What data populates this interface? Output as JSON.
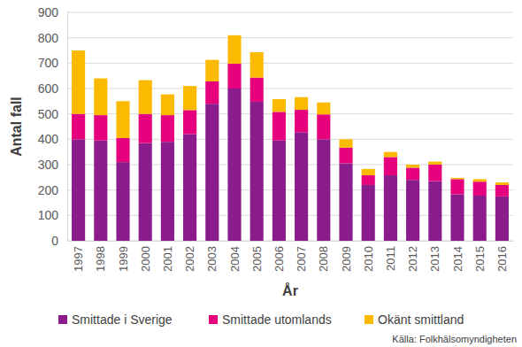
{
  "chart_data": {
    "type": "bar",
    "stacked": true,
    "grid": true,
    "legend": "bottom",
    "x_label": "År",
    "y_label": "Antal fall",
    "source": "Källa: Folkhälsomyndigheten",
    "categories": [
      "1997",
      "1998",
      "1999",
      "2000",
      "2001",
      "2002",
      "2003",
      "2004",
      "2005",
      "2006",
      "2007",
      "2008",
      "2009",
      "2010",
      "2011",
      "2012",
      "2013",
      "2014",
      "2015",
      "2016"
    ],
    "series": [
      {
        "name": "Smittade i Sverige",
        "color": "#8b1c8c",
        "values": [
          400,
          395,
          310,
          385,
          390,
          420,
          540,
          600,
          548,
          395,
          428,
          400,
          305,
          220,
          258,
          240,
          235,
          183,
          178,
          175
        ]
      },
      {
        "name": "Smittade utomlands",
        "color": "#e6007e",
        "values": [
          100,
          100,
          95,
          115,
          105,
          95,
          88,
          98,
          95,
          113,
          88,
          98,
          62,
          38,
          72,
          48,
          65,
          60,
          55,
          45
        ]
      },
      {
        "name": "Okänt smittland",
        "color": "#fbba00",
        "values": [
          250,
          145,
          145,
          133,
          82,
          95,
          85,
          112,
          100,
          50,
          50,
          47,
          33,
          25,
          20,
          12,
          12,
          5,
          10,
          10
        ]
      }
    ],
    "ylim": [
      0,
      900
    ],
    "yticks": [
      0,
      100,
      200,
      300,
      400,
      500,
      600,
      700,
      800,
      900
    ]
  }
}
